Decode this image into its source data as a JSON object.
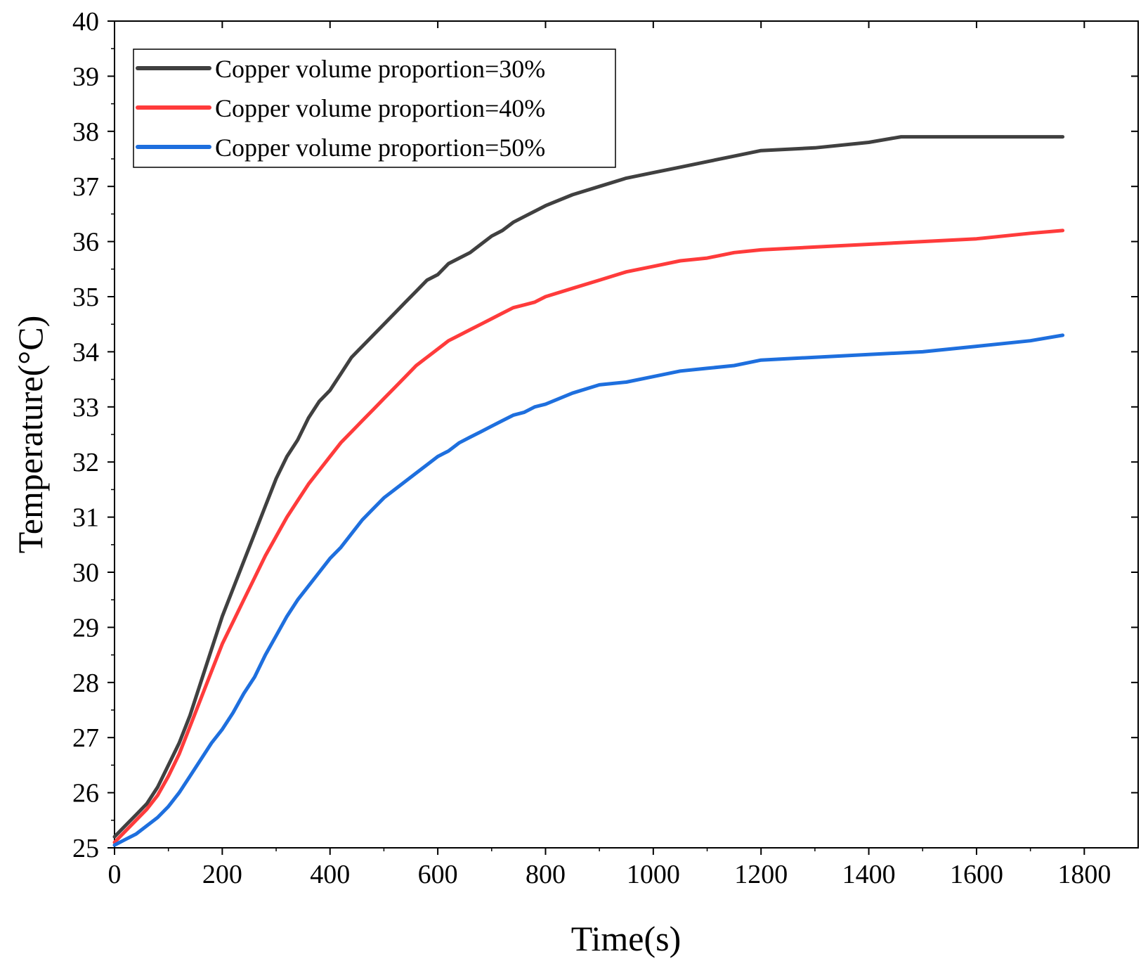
{
  "chart_data": {
    "type": "line",
    "title": "",
    "xlabel": "Time(s)",
    "ylabel": "Temperature(°C)",
    "xlim": [
      0,
      1900
    ],
    "ylim": [
      25,
      40
    ],
    "xticks": [
      0,
      200,
      400,
      600,
      800,
      1000,
      1200,
      1400,
      1600,
      1800
    ],
    "yticks": [
      25,
      26,
      27,
      28,
      29,
      30,
      31,
      32,
      33,
      34,
      35,
      36,
      37,
      38,
      39,
      40
    ],
    "grid": false,
    "legend_position": "top-left",
    "series": [
      {
        "name": "Copper volume proportion=30%",
        "color": "#404040",
        "x": [
          0,
          20,
          40,
          60,
          80,
          100,
          120,
          140,
          160,
          180,
          200,
          220,
          240,
          260,
          280,
          300,
          320,
          340,
          360,
          380,
          400,
          420,
          440,
          460,
          480,
          500,
          520,
          540,
          560,
          580,
          600,
          620,
          640,
          660,
          680,
          700,
          720,
          740,
          760,
          780,
          800,
          850,
          900,
          950,
          1000,
          1050,
          1100,
          1150,
          1200,
          1300,
          1400,
          1460,
          1500,
          1600,
          1700,
          1760
        ],
        "values": [
          25.2,
          25.4,
          25.6,
          25.8,
          26.1,
          26.5,
          26.9,
          27.4,
          28.0,
          28.6,
          29.2,
          29.7,
          30.2,
          30.7,
          31.2,
          31.7,
          32.1,
          32.4,
          32.8,
          33.1,
          33.3,
          33.6,
          33.9,
          34.1,
          34.3,
          34.5,
          34.7,
          34.9,
          35.1,
          35.3,
          35.4,
          35.6,
          35.7,
          35.8,
          35.95,
          36.1,
          36.2,
          36.35,
          36.45,
          36.55,
          36.65,
          36.85,
          37.0,
          37.15,
          37.25,
          37.35,
          37.45,
          37.55,
          37.65,
          37.7,
          37.8,
          37.9,
          37.9,
          37.9,
          37.9,
          37.9
        ]
      },
      {
        "name": "Copper volume proportion=40%",
        "color": "#ff3b3b",
        "x": [
          0,
          20,
          40,
          60,
          80,
          100,
          120,
          140,
          160,
          180,
          200,
          220,
          240,
          260,
          280,
          300,
          320,
          340,
          360,
          380,
          400,
          420,
          440,
          460,
          480,
          500,
          520,
          540,
          560,
          580,
          600,
          620,
          640,
          660,
          680,
          700,
          720,
          740,
          760,
          780,
          800,
          850,
          900,
          950,
          1000,
          1050,
          1100,
          1150,
          1200,
          1300,
          1400,
          1500,
          1600,
          1700,
          1760
        ],
        "values": [
          25.1,
          25.3,
          25.5,
          25.7,
          25.95,
          26.3,
          26.7,
          27.2,
          27.7,
          28.2,
          28.7,
          29.1,
          29.5,
          29.9,
          30.3,
          30.65,
          31.0,
          31.3,
          31.6,
          31.85,
          32.1,
          32.35,
          32.55,
          32.75,
          32.95,
          33.15,
          33.35,
          33.55,
          33.75,
          33.9,
          34.05,
          34.2,
          34.3,
          34.4,
          34.5,
          34.6,
          34.7,
          34.8,
          34.85,
          34.9,
          35.0,
          35.15,
          35.3,
          35.45,
          35.55,
          35.65,
          35.7,
          35.8,
          35.85,
          35.9,
          35.95,
          36.0,
          36.05,
          36.15,
          36.2
        ]
      },
      {
        "name": "Copper volume proportion=50%",
        "color": "#1e6fde",
        "x": [
          0,
          20,
          40,
          60,
          80,
          100,
          120,
          140,
          160,
          180,
          200,
          220,
          240,
          260,
          280,
          300,
          320,
          340,
          360,
          380,
          400,
          420,
          440,
          460,
          480,
          500,
          520,
          540,
          560,
          580,
          600,
          620,
          640,
          660,
          680,
          700,
          720,
          740,
          760,
          780,
          800,
          850,
          900,
          950,
          1000,
          1050,
          1100,
          1150,
          1200,
          1300,
          1400,
          1500,
          1600,
          1700,
          1760
        ],
        "values": [
          25.05,
          25.15,
          25.25,
          25.4,
          25.55,
          25.75,
          26.0,
          26.3,
          26.6,
          26.9,
          27.15,
          27.45,
          27.8,
          28.1,
          28.5,
          28.85,
          29.2,
          29.5,
          29.75,
          30.0,
          30.25,
          30.45,
          30.7,
          30.95,
          31.15,
          31.35,
          31.5,
          31.65,
          31.8,
          31.95,
          32.1,
          32.2,
          32.35,
          32.45,
          32.55,
          32.65,
          32.75,
          32.85,
          32.9,
          33.0,
          33.05,
          33.25,
          33.4,
          33.45,
          33.55,
          33.65,
          33.7,
          33.75,
          33.85,
          33.9,
          33.95,
          34.0,
          34.1,
          34.2,
          34.3
        ]
      }
    ]
  }
}
